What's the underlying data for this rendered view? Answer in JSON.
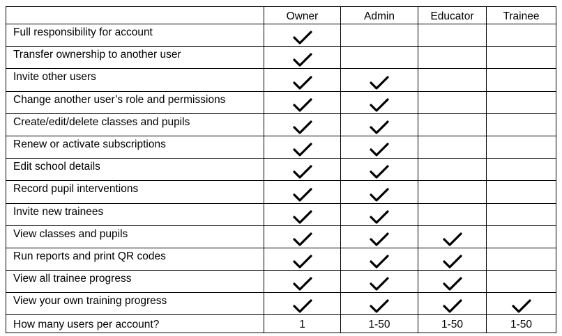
{
  "columns": [
    "",
    "Owner",
    "Admin",
    "Educator",
    "Trainee"
  ],
  "rows": [
    {
      "label": "Full responsibility for account",
      "owner": true,
      "admin": false,
      "educator": false,
      "trainee": false
    },
    {
      "label": "Transfer ownership to another user",
      "owner": true,
      "admin": false,
      "educator": false,
      "trainee": false
    },
    {
      "label": "Invite other users",
      "owner": true,
      "admin": true,
      "educator": false,
      "trainee": false
    },
    {
      "label": "Change another user’s role and permissions",
      "owner": true,
      "admin": true,
      "educator": false,
      "trainee": false
    },
    {
      "label": "Create/edit/delete classes and pupils",
      "owner": true,
      "admin": true,
      "educator": false,
      "trainee": false
    },
    {
      "label": "Renew or activate subscriptions",
      "owner": true,
      "admin": true,
      "educator": false,
      "trainee": false
    },
    {
      "label": "Edit school details",
      "owner": true,
      "admin": true,
      "educator": false,
      "trainee": false
    },
    {
      "label": "Record pupil interventions",
      "owner": true,
      "admin": true,
      "educator": false,
      "trainee": false
    },
    {
      "label": "Invite new trainees",
      "owner": true,
      "admin": true,
      "educator": false,
      "trainee": false
    },
    {
      "label": "View classes and pupils",
      "owner": true,
      "admin": true,
      "educator": true,
      "trainee": false
    },
    {
      "label": "Run reports and print QR codes",
      "owner": true,
      "admin": true,
      "educator": true,
      "trainee": false
    },
    {
      "label": "View all trainee progress",
      "owner": true,
      "admin": true,
      "educator": true,
      "trainee": false
    },
    {
      "label": "View your own training progress",
      "owner": true,
      "admin": true,
      "educator": true,
      "trainee": true
    }
  ],
  "footer": {
    "label": "How many users per account?",
    "owner": "1",
    "admin": "1-50",
    "educator": "1-50",
    "trainee": "1-50"
  },
  "icons": {
    "checked": "checkmark-icon"
  }
}
